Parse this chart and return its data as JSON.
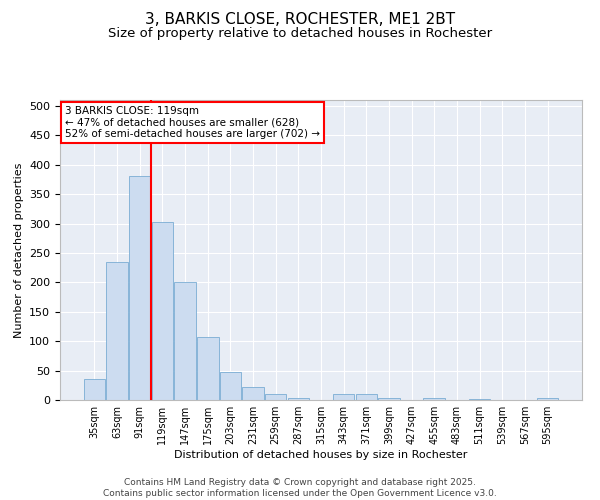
{
  "title": "3, BARKIS CLOSE, ROCHESTER, ME1 2BT",
  "subtitle": "Size of property relative to detached houses in Rochester",
  "xlabel": "Distribution of detached houses by size in Rochester",
  "ylabel": "Number of detached properties",
  "categories": [
    "35sqm",
    "63sqm",
    "91sqm",
    "119sqm",
    "147sqm",
    "175sqm",
    "203sqm",
    "231sqm",
    "259sqm",
    "287sqm",
    "315sqm",
    "343sqm",
    "371sqm",
    "399sqm",
    "427sqm",
    "455sqm",
    "483sqm",
    "511sqm",
    "539sqm",
    "567sqm",
    "595sqm"
  ],
  "values": [
    35,
    235,
    380,
    303,
    200,
    107,
    48,
    22,
    11,
    4,
    0,
    10,
    10,
    4,
    0,
    3,
    0,
    1,
    0,
    0,
    3
  ],
  "bar_color": "#ccdcf0",
  "bar_edge_color": "#7aadd4",
  "vline_color": "red",
  "vline_index": 3,
  "annotation_text_line1": "3 BARKIS CLOSE: 119sqm",
  "annotation_text_line2": "← 47% of detached houses are smaller (628)",
  "annotation_text_line3": "52% of semi-detached houses are larger (702) →",
  "annotation_box_color": "white",
  "annotation_box_edge_color": "red",
  "ylim": [
    0,
    510
  ],
  "yticks": [
    0,
    50,
    100,
    150,
    200,
    250,
    300,
    350,
    400,
    450,
    500
  ],
  "background_color": "#e8edf5",
  "grid_color": "white",
  "title_fontsize": 11,
  "subtitle_fontsize": 9.5,
  "axis_label_fontsize": 8,
  "tick_fontsize": 8,
  "xtick_fontsize": 7,
  "footer_text": "Contains HM Land Registry data © Crown copyright and database right 2025.\nContains public sector information licensed under the Open Government Licence v3.0.",
  "footer_fontsize": 6.5
}
